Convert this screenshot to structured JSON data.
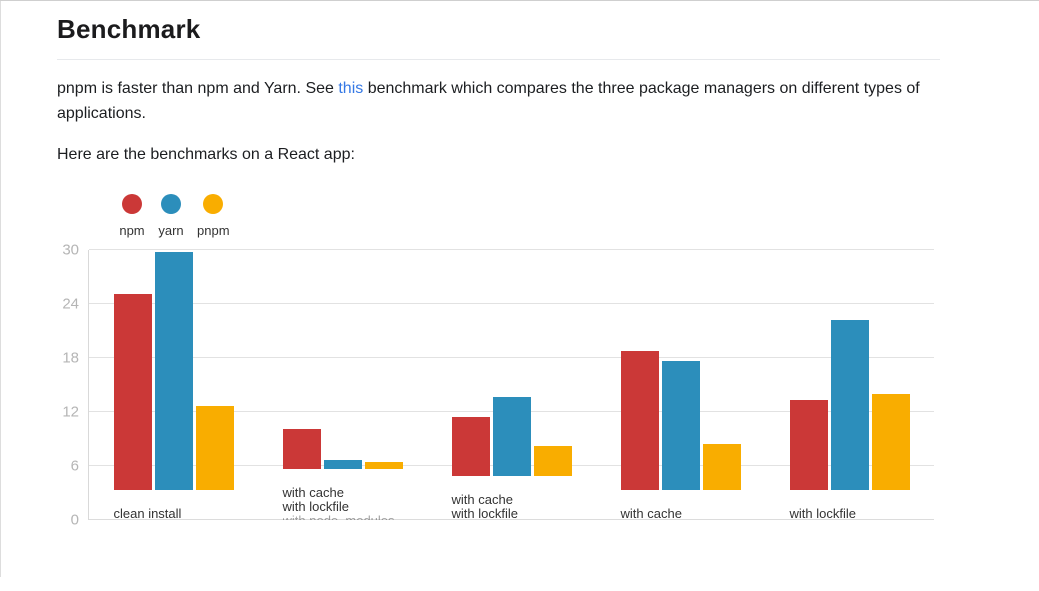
{
  "page": {
    "heading": "Benchmark",
    "intro_before_link": "pnpm is faster than npm and Yarn. See ",
    "intro_link": "this",
    "intro_after_link": " benchmark which compares the three package managers on different types of applications.",
    "react_line": "Here are the benchmarks on a React app:"
  },
  "chart_data": {
    "type": "bar",
    "title": "",
    "xlabel": "",
    "ylabel": "",
    "grid": true,
    "legend_position": "top-left",
    "ylim": [
      0,
      30
    ],
    "yticks": [
      0,
      6,
      12,
      18,
      24,
      30
    ],
    "categories": [
      {
        "lines": [
          "clean install"
        ]
      },
      {
        "lines": [
          "with cache",
          "with lockfile"
        ],
        "partial_line": "with node_modules"
      },
      {
        "lines": [
          "with cache",
          "with lockfile"
        ]
      },
      {
        "lines": [
          "with cache"
        ]
      },
      {
        "lines": [
          "with lockfile"
        ]
      }
    ],
    "series": [
      {
        "name": "npm",
        "color": "#CB3837",
        "values": [
          24.5,
          5.5,
          7.9,
          17.4,
          11.2
        ]
      },
      {
        "name": "yarn",
        "color": "#2C8EBB",
        "values": [
          29.7,
          1.2,
          10.5,
          16.1,
          21.3
        ]
      },
      {
        "name": "pnpm",
        "color": "#F9AD00",
        "values": [
          10.5,
          0.9,
          4.0,
          5.8,
          12.0
        ]
      }
    ]
  }
}
